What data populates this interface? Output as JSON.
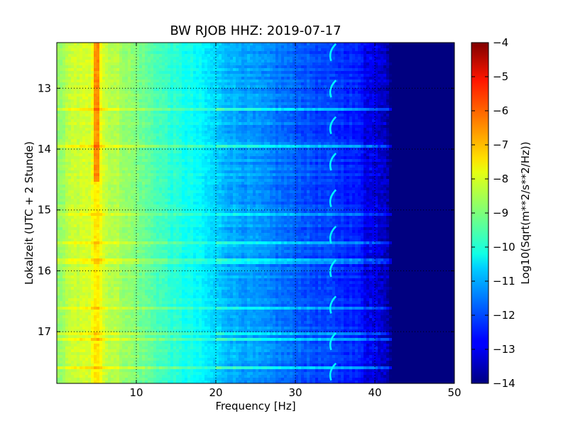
{
  "chart_data": {
    "type": "heatmap",
    "title": "BW RJOB HHZ: 2019-07-17",
    "xlabel": "Frequency [Hz]",
    "ylabel": "Lokalzeit (UTC + 2 Stunde)",
    "xlim": [
      0,
      50
    ],
    "ylim": [
      12.25,
      17.85
    ],
    "y_inverted": true,
    "x_ticks": [
      "10",
      "20",
      "30",
      "40",
      "50"
    ],
    "y_ticks": [
      "13",
      "14",
      "15",
      "16",
      "17"
    ],
    "grid": true,
    "colormap": "jet",
    "colorbar": {
      "label": "Log10(Sqrt(m**2/s**2/Hz))",
      "range": [
        -14,
        -4
      ],
      "ticks": [
        "-4",
        "-5",
        "-6",
        "-7",
        "-8",
        "-9",
        "-10",
        "-11",
        "-12",
        "-13",
        "-14"
      ]
    },
    "spectrum_profile": {
      "frequency_hz": [
        0,
        2,
        4,
        5,
        6,
        8,
        10,
        12,
        15,
        18,
        20,
        22,
        25,
        28,
        30,
        33,
        35,
        38,
        40,
        41.5,
        42,
        45,
        50
      ],
      "log_amplitude": [
        -8.9,
        -8.3,
        -8.2,
        -7.3,
        -8.3,
        -8.6,
        -9.0,
        -9.4,
        -9.9,
        -10.3,
        -10.7,
        -11.0,
        -11.3,
        -11.6,
        -11.8,
        -12.1,
        -12.2,
        -12.5,
        -12.7,
        -13.0,
        -13.8,
        -14.0,
        -14.0
      ]
    },
    "features": {
      "spectral_line_hz": 5,
      "spectral_line_end_hour": 14.55,
      "curved_trace_hz": 34.5
    }
  }
}
